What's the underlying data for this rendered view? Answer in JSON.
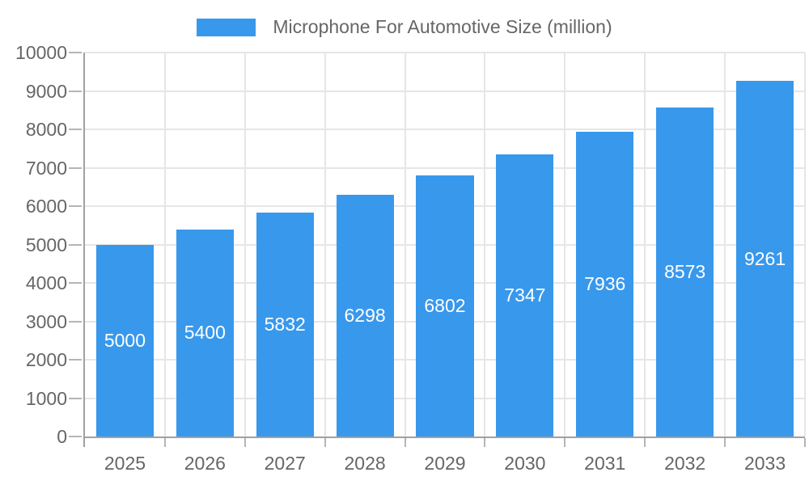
{
  "chart_data": {
    "type": "bar",
    "title": "Microphone For Automotive Size (million)",
    "categories": [
      "2025",
      "2026",
      "2027",
      "2028",
      "2029",
      "2030",
      "2031",
      "2032",
      "2033"
    ],
    "values": [
      5000,
      5400,
      5832,
      6298,
      6802,
      7347,
      7936,
      8573,
      9261
    ],
    "series": [
      {
        "name": "Microphone For Automotive Size (million)",
        "values": [
          5000,
          5400,
          5832,
          6298,
          6802,
          7347,
          7936,
          8573,
          9261
        ]
      }
    ],
    "xlabel": "",
    "ylabel": "",
    "ylim": [
      0,
      10000
    ],
    "y_tick_step": 1000,
    "y_tick_labels": [
      "10000",
      "9000",
      "8000",
      "7000",
      "6000",
      "5000",
      "4000",
      "3000",
      "2000",
      "1000",
      "0"
    ],
    "grid": true,
    "legend_position": "top",
    "bar_labels_inside": true,
    "bar_color": "#3898EC",
    "bar_label_color": "#FFFFFF",
    "axis_text_color": "#666666",
    "grid_color": "#E6E6E6",
    "tick_color": "#B5B5B5",
    "axis_line_color": "#A0A0A0"
  },
  "legend": {
    "label": "Microphone For Automotive Size (million)",
    "swatch_color": "#3898EC"
  }
}
